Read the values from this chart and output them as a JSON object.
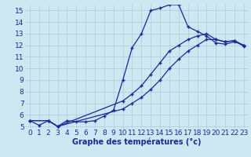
{
  "xlabel": "Graphe des températures (°c)",
  "background_color": "#cce8f0",
  "grid_color": "#aaccd8",
  "line_color": "#2222aa",
  "xlim_min": -0.5,
  "xlim_max": 23.5,
  "ylim_min": 4.8,
  "ylim_max": 15.5,
  "yticks": [
    5,
    6,
    7,
    8,
    9,
    10,
    11,
    12,
    13,
    14,
    15
  ],
  "xticks": [
    0,
    1,
    2,
    3,
    4,
    5,
    6,
    7,
    8,
    9,
    10,
    11,
    12,
    13,
    14,
    15,
    16,
    17,
    18,
    19,
    20,
    21,
    22,
    23
  ],
  "series1_x": [
    0,
    1,
    2,
    3,
    4,
    5,
    6,
    7,
    8,
    9,
    10,
    11,
    12,
    13,
    14,
    15,
    16,
    17,
    18,
    19,
    20,
    21,
    22,
    23
  ],
  "series1_y": [
    5.5,
    5.1,
    5.5,
    5.0,
    5.5,
    5.4,
    5.4,
    5.5,
    5.9,
    6.4,
    9.0,
    11.8,
    13.0,
    15.0,
    15.2,
    15.5,
    15.5,
    13.6,
    13.2,
    12.8,
    12.2,
    12.1,
    12.3,
    12.0
  ],
  "series2_x": [
    0,
    2,
    3,
    10,
    11,
    12,
    13,
    14,
    15,
    16,
    17,
    18,
    19,
    20,
    21,
    22,
    23
  ],
  "series2_y": [
    5.5,
    5.5,
    5.0,
    7.2,
    7.8,
    8.5,
    9.5,
    10.5,
    11.5,
    12.0,
    12.5,
    12.8,
    13.0,
    12.5,
    12.3,
    12.4,
    12.0
  ],
  "series3_x": [
    0,
    2,
    3,
    10,
    11,
    12,
    13,
    14,
    15,
    16,
    17,
    18,
    19,
    20,
    21,
    22,
    23
  ],
  "series3_y": [
    5.5,
    5.5,
    5.0,
    6.5,
    7.0,
    7.5,
    8.2,
    9.0,
    10.0,
    10.8,
    11.5,
    12.0,
    12.5,
    12.5,
    12.3,
    12.4,
    11.9
  ],
  "tick_fontsize": 6.5,
  "xlabel_fontsize": 7,
  "figwidth": 3.2,
  "figheight": 2.0,
  "dpi": 100
}
